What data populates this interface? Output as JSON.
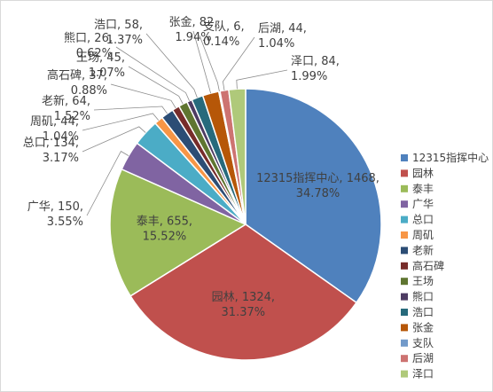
{
  "chart_data": {
    "type": "pie",
    "title": "",
    "legend_position": "right",
    "slices": [
      {
        "name": "12315指挥中心",
        "value": 1468,
        "percent": "34.78%",
        "color": "#4f81bd"
      },
      {
        "name": "园林",
        "value": 1324,
        "percent": "31.37%",
        "color": "#c0504d"
      },
      {
        "name": "泰丰",
        "value": 655,
        "percent": "15.52%",
        "color": "#9bbb59"
      },
      {
        "name": "广华",
        "value": 150,
        "percent": "3.55%",
        "color": "#8064a2"
      },
      {
        "name": "总口",
        "value": 134,
        "percent": "3.17%",
        "color": "#4bacc6"
      },
      {
        "name": "周矶",
        "value": 44,
        "percent": "1.04%",
        "color": "#f79646"
      },
      {
        "name": "老新",
        "value": 64,
        "percent": "1.52%",
        "color": "#2c4d75"
      },
      {
        "name": "高石碑",
        "value": 37,
        "percent": "0.88%",
        "color": "#772c2a"
      },
      {
        "name": "王场",
        "value": 45,
        "percent": "1.07%",
        "color": "#5f7530"
      },
      {
        "name": "熊口",
        "value": 26,
        "percent": "0.62%",
        "color": "#4d3b62"
      },
      {
        "name": "浩口",
        "value": 58,
        "percent": "1.37%",
        "color": "#276a7c"
      },
      {
        "name": "张金",
        "value": 82,
        "percent": "1.94%",
        "color": "#b65708"
      },
      {
        "name": "支队",
        "value": 6,
        "percent": "0.14%",
        "color": "#729aca"
      },
      {
        "name": "后湖",
        "value": 44,
        "percent": "1.04%",
        "color": "#cd7371"
      },
      {
        "name": "泽口",
        "value": 84,
        "percent": "1.99%",
        "color": "#afc97a"
      }
    ]
  }
}
